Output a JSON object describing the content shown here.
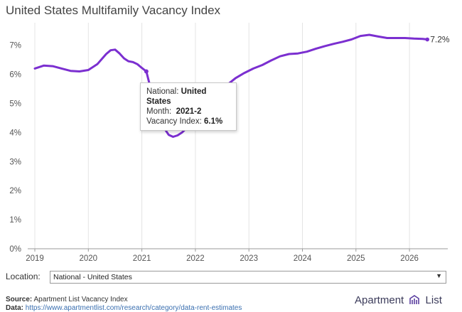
{
  "title": "United States Multifamily Vacancy Index",
  "colors": {
    "line": "#7b2fd0",
    "grid": "#e4e4e4",
    "axis": "#9a9a9a"
  },
  "chart_data": {
    "type": "line",
    "title": "United States Multifamily Vacancy Index",
    "xlabel": "",
    "ylabel": "",
    "x_ticks": [
      "2019",
      "2020",
      "2021",
      "2022",
      "2023",
      "2024",
      "2025",
      "2026"
    ],
    "y_ticks": [
      "0%",
      "1%",
      "2%",
      "3%",
      "4%",
      "5%",
      "6%",
      "7%"
    ],
    "ylim": [
      0,
      7.6
    ],
    "grid": "vertical at years",
    "series": [
      {
        "name": "National - United States",
        "x": [
          "2019-01",
          "2019-03",
          "2019-05",
          "2019-07",
          "2019-09",
          "2019-11",
          "2020-01",
          "2020-03",
          "2020-05",
          "2020-06",
          "2020-07",
          "2020-08",
          "2020-09",
          "2020-10",
          "2020-11",
          "2020-12",
          "2021-01",
          "2021-02",
          "2021-03",
          "2021-04",
          "2021-05",
          "2021-06",
          "2021-07",
          "2021-08",
          "2021-09",
          "2021-10",
          "2021-11",
          "2021-12",
          "2022-02",
          "2022-04",
          "2022-06",
          "2022-08",
          "2022-10",
          "2022-12",
          "2023-02",
          "2023-04",
          "2023-06",
          "2023-08",
          "2023-10",
          "2023-12",
          "2024-02",
          "2024-04",
          "2024-06",
          "2024-08",
          "2024-10",
          "2024-12",
          "2025-02",
          "2025-04",
          "2025-06",
          "2025-08",
          "2025-10",
          "2025-12",
          "2026-02",
          "2026-04",
          "2026-05"
        ],
        "values": [
          6.2,
          6.3,
          6.28,
          6.2,
          6.12,
          6.1,
          6.15,
          6.35,
          6.7,
          6.83,
          6.85,
          6.72,
          6.55,
          6.45,
          6.42,
          6.35,
          6.22,
          6.1,
          5.5,
          4.9,
          4.45,
          4.15,
          3.92,
          3.85,
          3.9,
          4.0,
          4.15,
          4.3,
          4.65,
          4.95,
          5.25,
          5.62,
          5.87,
          6.05,
          6.2,
          6.32,
          6.48,
          6.62,
          6.7,
          6.72,
          6.78,
          6.88,
          6.97,
          7.05,
          7.12,
          7.2,
          7.32,
          7.36,
          7.3,
          7.25,
          7.25,
          7.25,
          7.23,
          7.22,
          7.2
        ],
        "end_label": "7.2%"
      }
    ],
    "tooltip": {
      "national_label": "National:",
      "national_value": "United States",
      "month_label": "Month:",
      "month_value": "2021-2",
      "vacancy_label": "Vacancy Index:",
      "vacancy_value": "6.1%"
    }
  },
  "location": {
    "label": "Location:",
    "selected": "National - United States"
  },
  "footer": {
    "source_label": "Source:",
    "source_text": "Apartment List Vacancy Index",
    "data_label": "Data:",
    "data_link": "https://www.apartmentlist.com/research/category/data-rent-estimates"
  },
  "logo": {
    "text_left": "Apartment",
    "text_right": "List",
    "icon": "apartment-list-logo-icon"
  }
}
